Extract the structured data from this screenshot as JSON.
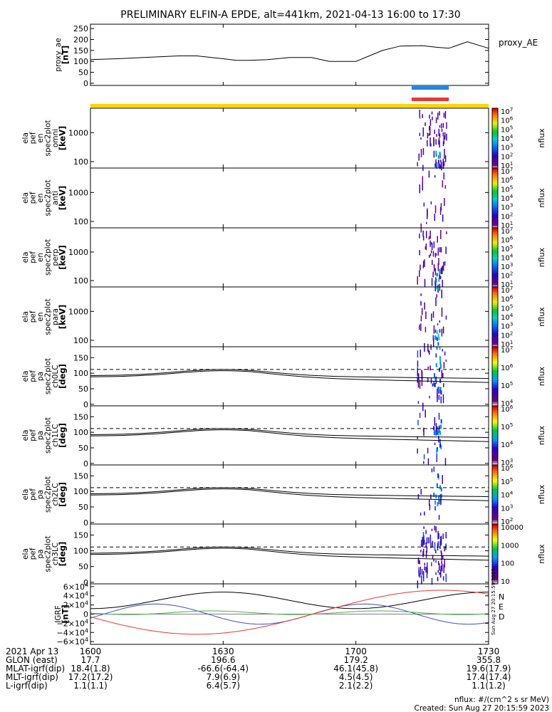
{
  "title": "PRELIMINARY ELFIN-A EPDE, alt=441km, 2021-04-13 16:00 to 17:30",
  "created": "Created: Sun Aug 27 20:15:59 2023",
  "created_vertical": "Sun Aug 27 20:15:59 2023",
  "nflux_units": "nflux: #/(cm^2 s sr MeV)",
  "colors": {
    "line": "#000000",
    "bar_top": "#1e88e5",
    "bar_bottom": "#e53935",
    "yellow_bar": "#ffd400",
    "grf_n": "#3f51b5",
    "grf_e": "#4caf50",
    "grf_d": "#e53935"
  },
  "chart_data": [
    {
      "id": "proxy_ae",
      "type": "line",
      "ylabel": [
        "proxy_ae",
        "[nT]"
      ],
      "legend": "proxy_AE",
      "ylim": [
        -10,
        270
      ],
      "yticks": [
        "250",
        "200",
        "150",
        "100",
        "50",
        "0"
      ],
      "ytick_values": [
        250,
        200,
        150,
        100,
        50,
        0
      ],
      "x": [
        16.0,
        16.1,
        16.2,
        16.333,
        16.4,
        16.5,
        16.55,
        16.6,
        16.667,
        16.75,
        16.8,
        16.833,
        16.9,
        17.0,
        17.1,
        17.167,
        17.25,
        17.3,
        17.35,
        17.42,
        17.5
      ],
      "values": [
        108,
        112,
        118,
        125,
        125,
        112,
        105,
        105,
        108,
        118,
        118,
        118,
        100,
        100,
        150,
        170,
        172,
        165,
        160,
        190,
        160
      ]
    },
    {
      "id": "omni",
      "type": "heatmap",
      "ylabel": [
        "ela",
        "pef",
        "en",
        "spec2plot",
        "omni",
        "[keV]"
      ],
      "yticks": [
        "1000",
        "100"
      ],
      "ytick_values": [
        1000,
        100
      ],
      "yscale": "log",
      "ylim": [
        60,
        7000
      ],
      "colorbar": {
        "label": "nflux",
        "ticks": [
          "10^7",
          "10^6",
          "10^5",
          "10^4",
          "10^3",
          "10^2",
          "10^1"
        ]
      }
    },
    {
      "id": "anti",
      "type": "heatmap",
      "ylabel": [
        "ela",
        "pef",
        "en",
        "spec2plot",
        "anti",
        "[keV]"
      ],
      "yticks": [
        "1000",
        "100"
      ],
      "ytick_values": [
        1000,
        100
      ],
      "yscale": "log",
      "ylim": [
        60,
        7000
      ],
      "colorbar": {
        "label": "nflux",
        "ticks": [
          "10^7",
          "10^6",
          "10^5",
          "10^4",
          "10^3",
          "10^2",
          "10^1"
        ]
      }
    },
    {
      "id": "perp",
      "type": "heatmap",
      "ylabel": [
        "ela",
        "pef",
        "en",
        "spec2plot",
        "perp",
        "[keV]"
      ],
      "yticks": [
        "1000",
        "100"
      ],
      "ytick_values": [
        1000,
        100
      ],
      "yscale": "log",
      "ylim": [
        60,
        7000
      ],
      "colorbar": {
        "label": "nflux",
        "ticks": [
          "10^7",
          "10^6",
          "10^5",
          "10^4",
          "10^3",
          "10^2",
          "10^1"
        ]
      }
    },
    {
      "id": "para",
      "type": "heatmap",
      "ylabel": [
        "ela",
        "pef",
        "en",
        "spec2plot",
        "para",
        "[keV]"
      ],
      "yticks": [
        "1000",
        "100"
      ],
      "ytick_values": [
        1000,
        100
      ],
      "yscale": "log",
      "ylim": [
        60,
        7000
      ],
      "colorbar": {
        "label": "nflux",
        "ticks": [
          "10^7",
          "10^6",
          "10^5",
          "10^4",
          "10^3",
          "10^2",
          "10^1"
        ]
      }
    },
    {
      "id": "ch0LC",
      "type": "heatmap",
      "ylabel": [
        "ela",
        "pef",
        "pa",
        "spec2plot",
        "ch0LC",
        "[deg]"
      ],
      "yticks": [
        "150",
        "100",
        "50",
        "0"
      ],
      "ytick_values": [
        150,
        100,
        50,
        0
      ],
      "ylim": [
        -5,
        185
      ],
      "colorbar": {
        "label": "nflux",
        "ticks": [
          "10^7",
          "10^6",
          "10^5",
          "10^4"
        ]
      }
    },
    {
      "id": "ch1LC",
      "type": "heatmap",
      "ylabel": [
        "ela",
        "pef",
        "pa",
        "spec2plot",
        "ch1LC",
        "[deg]"
      ],
      "yticks": [
        "150",
        "100",
        "50",
        "0"
      ],
      "ytick_values": [
        150,
        100,
        50,
        0
      ],
      "ylim": [
        -5,
        185
      ],
      "colorbar": {
        "label": "nflux",
        "ticks": [
          "10^6",
          "10^5",
          "10^4",
          "10^3"
        ]
      }
    },
    {
      "id": "ch2LC",
      "type": "heatmap",
      "ylabel": [
        "ela",
        "pef",
        "pa",
        "spec2plot",
        "ch2LC",
        "[deg]"
      ],
      "yticks": [
        "150",
        "100",
        "50",
        "0"
      ],
      "ytick_values": [
        150,
        100,
        50,
        0
      ],
      "ylim": [
        -5,
        185
      ],
      "colorbar": {
        "label": "nflux",
        "ticks": [
          "10^6",
          "10^5",
          "10^4",
          "10^3",
          "10^2"
        ]
      }
    },
    {
      "id": "ch3LC",
      "type": "heatmap",
      "ylabel": [
        "ela",
        "pef",
        "pa",
        "spec2plot",
        "ch3LC",
        "[deg]"
      ],
      "yticks": [
        "150",
        "100",
        "50",
        "0"
      ],
      "ytick_values": [
        150,
        100,
        50,
        0
      ],
      "ylim": [
        -5,
        185
      ],
      "colorbar": {
        "label": "nflux",
        "ticks": [
          "10000",
          "1000",
          "100",
          "10"
        ]
      }
    },
    {
      "id": "igrf",
      "type": "line",
      "ylabel": [
        "IGRF",
        "[nT]"
      ],
      "yticks": [
        "6×10^4",
        "4×10^4",
        "2×10^4",
        "0",
        "−2×10^4",
        "−4×10^4",
        "−6×10^4"
      ],
      "ytick_values": [
        60000,
        40000,
        20000,
        0,
        -20000,
        -40000,
        -60000
      ],
      "ylim": [
        -66000,
        66000
      ],
      "legend": [
        "N",
        "E",
        "D"
      ]
    }
  ],
  "x_axis": {
    "xlim": [
      16.0,
      17.5
    ],
    "tick_positions": [
      16.0,
      16.5,
      17.0,
      17.5
    ],
    "ticks": [
      "1600",
      "1630",
      "1700",
      "1730"
    ]
  },
  "footer": {
    "rows": [
      {
        "label": "2021 Apr 13",
        "values": [
          "1600",
          "1630",
          "1700",
          "1730"
        ]
      },
      {
        "label": "GLON (east)",
        "values": [
          "17.7",
          "196.6",
          "179.2",
          "355.8"
        ]
      },
      {
        "label": "MLAT-igrf(dip)",
        "values": [
          "18.4(1.8)",
          "-66.6(-64.4)",
          "46.1(45.8)",
          "19.6(17.9)"
        ]
      },
      {
        "label": "MLT-igrf(dip)",
        "values": [
          "17.2(17.2)",
          "7.9(6.9)",
          "4.5(4.5)",
          "17.4(17.4)"
        ]
      },
      {
        "label": "L-igrf(dip)",
        "values": [
          "1.1(1.1)",
          "6.4(5.7)",
          "2.1(2.2)",
          "1.1(1.2)"
        ]
      }
    ]
  }
}
